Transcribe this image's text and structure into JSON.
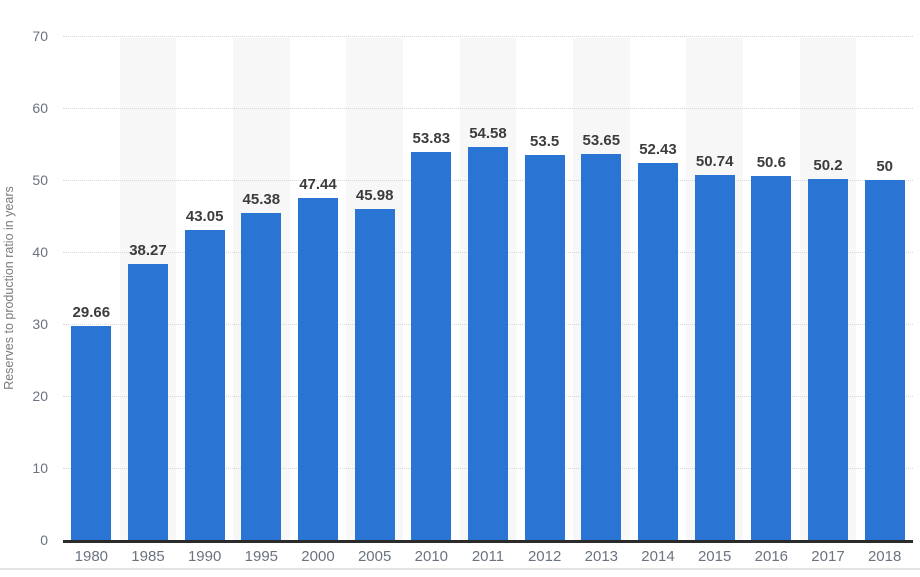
{
  "chart_data": {
    "type": "bar",
    "categories": [
      "1980",
      "1985",
      "1990",
      "1995",
      "2000",
      "2005",
      "2010",
      "2011",
      "2012",
      "2013",
      "2014",
      "2015",
      "2016",
      "2017",
      "2018"
    ],
    "values": [
      29.66,
      38.27,
      43.05,
      45.38,
      47.44,
      45.98,
      53.83,
      54.58,
      53.5,
      53.65,
      52.43,
      50.74,
      50.6,
      50.2,
      50
    ],
    "value_labels": [
      "29.66",
      "38.27",
      "43.05",
      "45.38",
      "47.44",
      "45.98",
      "53.83",
      "54.58",
      "53.5",
      "53.65",
      "52.43",
      "50.74",
      "50.6",
      "50.2",
      "50"
    ],
    "title": "",
    "xlabel": "",
    "ylabel": "Reserves to production ratio in years",
    "ylim": [
      0,
      70
    ],
    "yticks": [
      0,
      10,
      20,
      30,
      40,
      50,
      60,
      70
    ],
    "grid": "horizontal-dotted",
    "legend": "none",
    "striped_category_indices": [
      1,
      3,
      5,
      7,
      9,
      11,
      13
    ],
    "colors": {
      "bar": "#2a75d4",
      "stripe": "#f7f7f7",
      "gridline": "#d8d8d8",
      "axis_line": "#2b2b2b",
      "tick_label": "#6a737e",
      "value_label": "#3c3c3c",
      "y_axis_title": "#7b7b7b",
      "divider": "#e4e4e4",
      "background": "#ffffff"
    }
  }
}
